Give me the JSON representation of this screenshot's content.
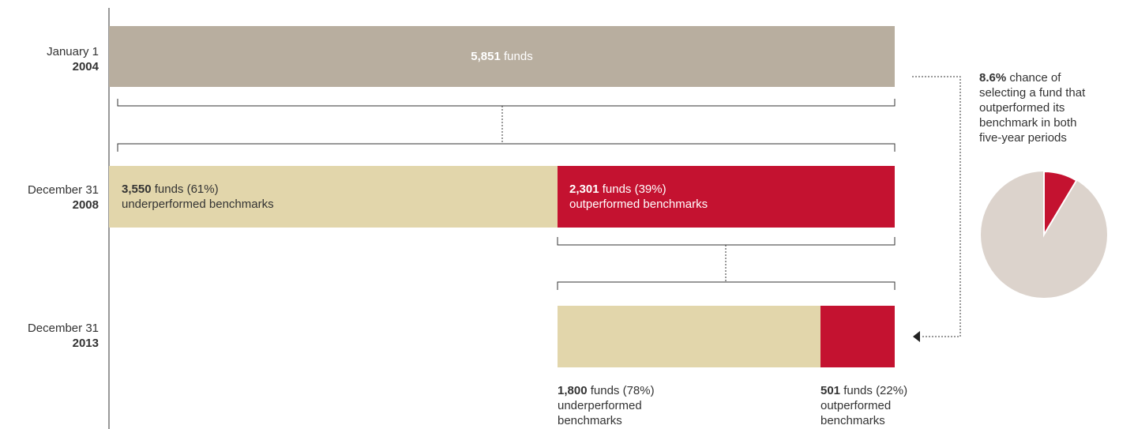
{
  "rows": [
    {
      "date": "January 1",
      "year": "2004"
    },
    {
      "date": "December 31",
      "year": "2008"
    },
    {
      "date": "December 31",
      "year": "2013"
    }
  ],
  "start": {
    "count": {
      "value": 5851,
      "label": "5,851"
    },
    "unit": "funds"
  },
  "period1": [
    {
      "count": {
        "value": 3550,
        "label": "3,550"
      },
      "unit": "funds (61%)",
      "description": "underperformed benchmarks"
    },
    {
      "count": {
        "value": 2301,
        "label": "2,301"
      },
      "unit": "funds (39%)",
      "description": "outperformed benchmarks"
    }
  ],
  "period2": [
    {
      "count": {
        "value": 1800,
        "label": "1,800"
      },
      "unit": "funds (78%)",
      "description": "underperformed benchmarks"
    },
    {
      "count": {
        "value": 501,
        "label": "501"
      },
      "unit": "funds (22%)",
      "description": "outperformed benchmarks"
    }
  ],
  "pie": {
    "value": 8.6,
    "label": "8.6%",
    "text": "chance of selecting a fund that outperformed its benchmark in both five-year periods"
  }
}
